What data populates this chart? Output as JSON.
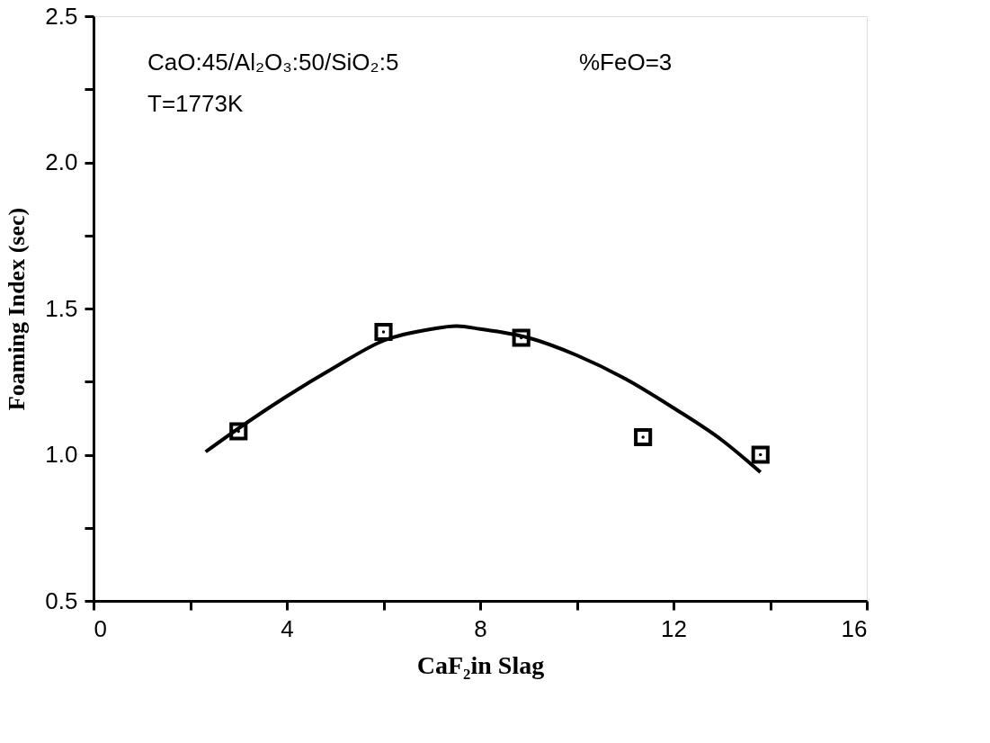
{
  "chart_data": {
    "type": "scatter",
    "xlabel": "CaF₂in Slag",
    "ylabel": "Foaming Index  (sec)",
    "annotations": [
      "CaO:45/Al₂O₃:50/SiO₂:5",
      "%FeO=3",
      "T=1773K"
    ],
    "series": [
      {
        "color": "#000000",
        "marker": "square",
        "x": [
          3,
          6,
          8.85,
          11.37,
          13.8
        ],
        "values": [
          1.08,
          1.42,
          1.4,
          1.06,
          1.0
        ]
      },
      {
        "type": "line",
        "color": "#000000",
        "marker": "none",
        "line_style": "solid",
        "x": [
          2.32,
          3,
          4,
          5,
          6,
          7,
          7.5,
          8,
          9,
          10,
          11,
          12,
          13,
          13.8
        ],
        "values": [
          1.01,
          1.09,
          1.2,
          1.3,
          1.39,
          1.43,
          1.44,
          1.43,
          1.4,
          1.34,
          1.26,
          1.16,
          1.05,
          0.94
        ]
      }
    ],
    "xlim": [
      0,
      16
    ],
    "xticks": [
      0,
      {
        "value": 2,
        "label": null
      },
      4,
      {
        "value": 6,
        "label": null
      },
      8,
      {
        "value": 10,
        "label": null
      },
      12,
      {
        "value": 14,
        "label": null
      },
      16
    ],
    "ylim": [
      0.5,
      2.5
    ],
    "yticks": [
      0.5,
      {
        "value": 0.75,
        "label": null
      },
      {
        "value": 1,
        "label": "1.0"
      },
      {
        "value": 1.25,
        "label": null
      },
      1.5,
      {
        "value": 1.75,
        "label": null
      },
      {
        "value": 2,
        "label": "2.0"
      },
      {
        "value": 2.25,
        "label": null
      },
      2.5
    ],
    "grid": false
  }
}
